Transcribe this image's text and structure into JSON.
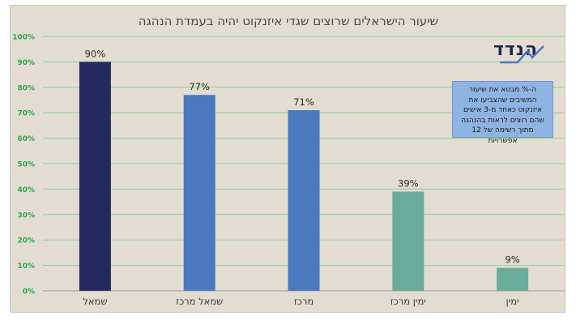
{
  "title": "שיעור הישראלים שרוצים שגדי איזנקוט יהיה בעמדת הנהגה",
  "logo": {
    "text": "הנדד",
    "icon": "chevron-line-logo"
  },
  "note": "ה-% מבטא את שיעור המשיבים שהצביעו את איזנקוט כאחד מ-3 אישים שהם רוצים לראות בהנהגה מתוך רשימה של 12 אפשרויות",
  "colors": {
    "background": "#e2ddd0",
    "grid": "#8fcf8f",
    "tick_label": "#2ea84a",
    "bars": [
      "#232a62",
      "#4a79c0",
      "#4a79c0",
      "#6aab9c",
      "#6aab9c"
    ]
  },
  "chart_data": {
    "type": "bar",
    "categories": [
      "שמאל",
      "שמאל מרכז",
      "מרכז",
      "ימין מרכז",
      "ימין"
    ],
    "values": [
      90,
      77,
      71,
      39,
      9
    ],
    "value_labels": [
      "90%",
      "77%",
      "71%",
      "39%",
      "9%"
    ],
    "title": "שיעור הישראלים שרוצים שגדי איזנקוט יהיה בעמדת הנהגה",
    "xlabel": "",
    "ylabel": "",
    "ylim": [
      0,
      100
    ],
    "yticks": [
      "0%",
      "10%",
      "20%",
      "30%",
      "40%",
      "50%",
      "60%",
      "70%",
      "80%",
      "90%",
      "100%"
    ],
    "grid": true,
    "legend": "none"
  }
}
